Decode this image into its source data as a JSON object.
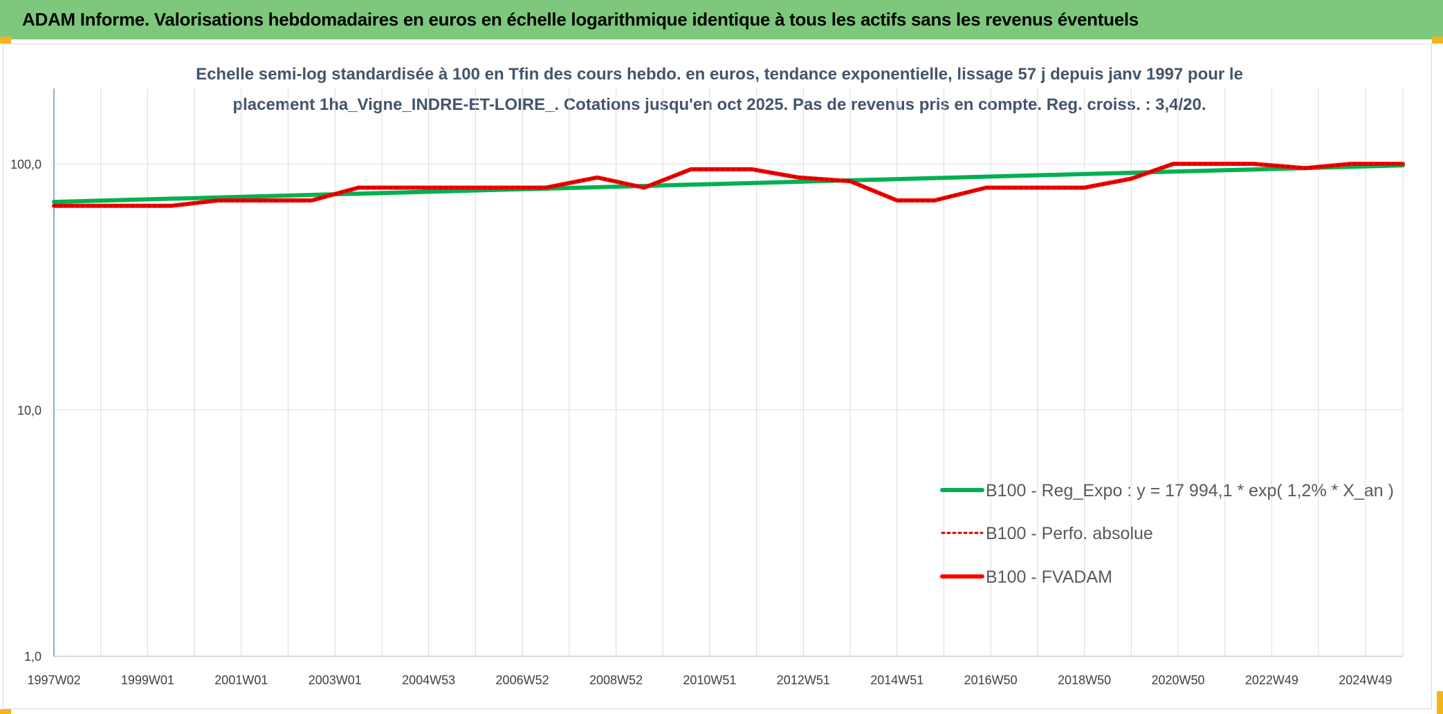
{
  "header": {
    "title": "ADAM Informe. Valorisations hebdomadaires en euros en échelle logarithmique identique à tous les actifs sans les revenus éventuels"
  },
  "colors": {
    "banner": "#7dc87d",
    "corner": "#f2b51c",
    "reg_expo": "#00b050",
    "perfo": "#c00000",
    "fvadam": "#ff0000",
    "grid": "#dcdcdc",
    "title_text": "#44546a"
  },
  "chart_data": {
    "type": "line",
    "title_line1": "Echelle semi-log standardisée à 100 en Tfin des cours hebdo. en euros, tendance exponentielle, lissage 57 j depuis janv 1997 pour le",
    "title_line2": "placement 1ha_Vigne_INDRE-ET-LOIRE_. Cotations jusqu'en oct 2025. Pas de revenus pris en compte. Reg. croiss. : 3,4/20.",
    "y_scale": "log",
    "ylim": [
      1,
      200
    ],
    "y_ticks": [
      {
        "value": 1,
        "label": "1,0"
      },
      {
        "value": 10,
        "label": "10,0"
      },
      {
        "value": 100,
        "label": "100,0"
      }
    ],
    "xlim": [
      1997.0,
      2025.8
    ],
    "x_ticks": [
      {
        "value": 1997.0,
        "label": "1997W02"
      },
      {
        "value": 1999.0,
        "label": "1999W01"
      },
      {
        "value": 2001.0,
        "label": "2001W01"
      },
      {
        "value": 2003.0,
        "label": "2003W01"
      },
      {
        "value": 2005.0,
        "label": "2004W53"
      },
      {
        "value": 2007.0,
        "label": "2006W52"
      },
      {
        "value": 2009.0,
        "label": "2008W52"
      },
      {
        "value": 2011.0,
        "label": "2010W51"
      },
      {
        "value": 2013.0,
        "label": "2012W51"
      },
      {
        "value": 2015.0,
        "label": "2014W51"
      },
      {
        "value": 2017.0,
        "label": "2016W50"
      },
      {
        "value": 2019.0,
        "label": "2018W50"
      },
      {
        "value": 2021.0,
        "label": "2020W50"
      },
      {
        "value": 2023.0,
        "label": "2022W49"
      },
      {
        "value": 2025.0,
        "label": "2024W49"
      }
    ],
    "grid": true,
    "legend_position": "lower-right",
    "series": [
      {
        "name": "B100 - Reg_Expo : y = 17 994,1 * exp( 1,2% *  X_an )",
        "style": "solid",
        "points": [
          [
            1997.0,
            70.0
          ],
          [
            2025.8,
            98.5
          ]
        ]
      },
      {
        "name": "B100 - Perfo. absolue",
        "style": "dotted",
        "points": [
          [
            1997.0,
            67.5
          ],
          [
            1999.5,
            67.5
          ],
          [
            2000.5,
            71.0
          ],
          [
            2002.5,
            71.0
          ],
          [
            2003.5,
            80.0
          ],
          [
            2007.5,
            80.0
          ],
          [
            2008.6,
            88.0
          ],
          [
            2009.6,
            80.0
          ],
          [
            2010.6,
            95.0
          ],
          [
            2011.9,
            95.0
          ],
          [
            2012.9,
            88.0
          ],
          [
            2014.0,
            85.0
          ],
          [
            2015.0,
            71.0
          ],
          [
            2015.8,
            71.0
          ],
          [
            2016.9,
            80.0
          ],
          [
            2019.0,
            80.0
          ],
          [
            2020.0,
            87.0
          ],
          [
            2020.9,
            100.0
          ],
          [
            2022.6,
            100.0
          ],
          [
            2023.7,
            96.0
          ],
          [
            2024.7,
            100.0
          ],
          [
            2025.8,
            100.0
          ]
        ]
      },
      {
        "name": "B100 - FVADAM",
        "style": "solid",
        "points": [
          [
            1997.0,
            67.5
          ],
          [
            1999.5,
            67.5
          ],
          [
            2000.5,
            71.0
          ],
          [
            2002.5,
            71.0
          ],
          [
            2003.5,
            80.0
          ],
          [
            2007.5,
            80.0
          ],
          [
            2008.6,
            88.0
          ],
          [
            2009.6,
            80.0
          ],
          [
            2010.6,
            95.0
          ],
          [
            2011.9,
            95.0
          ],
          [
            2012.9,
            88.0
          ],
          [
            2014.0,
            85.0
          ],
          [
            2015.0,
            71.0
          ],
          [
            2015.8,
            71.0
          ],
          [
            2016.9,
            80.0
          ],
          [
            2019.0,
            80.0
          ],
          [
            2020.0,
            87.0
          ],
          [
            2020.9,
            100.0
          ],
          [
            2022.6,
            100.0
          ],
          [
            2023.7,
            96.0
          ],
          [
            2024.7,
            100.0
          ],
          [
            2025.8,
            100.0
          ]
        ]
      }
    ]
  }
}
